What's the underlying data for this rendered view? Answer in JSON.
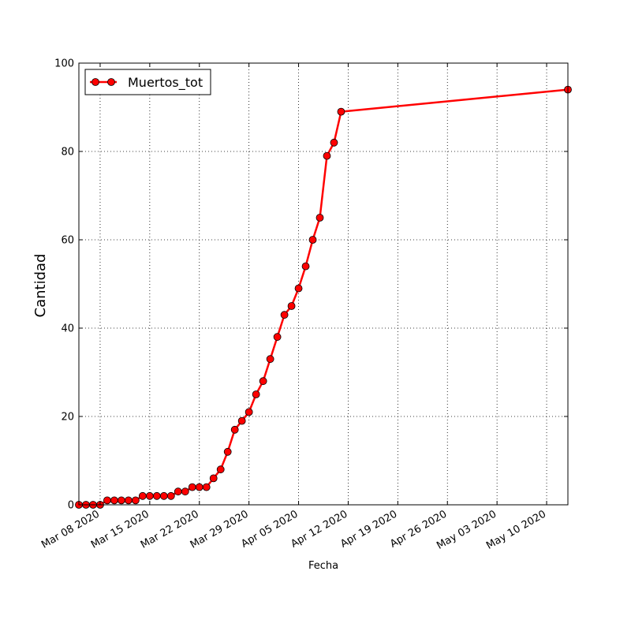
{
  "chart_data": {
    "type": "line",
    "title": "",
    "xlabel": "Fecha",
    "ylabel": "Cantidad",
    "x_start": "2020-03-05",
    "x_end": "2020-05-13",
    "ylim": [
      0,
      100
    ],
    "y_ticks": [
      0,
      20,
      40,
      60,
      80,
      100
    ],
    "x_ticks": [
      {
        "date": "2020-03-08",
        "label": "Mar 08 2020"
      },
      {
        "date": "2020-03-15",
        "label": "Mar 15 2020"
      },
      {
        "date": "2020-03-22",
        "label": "Mar 22 2020"
      },
      {
        "date": "2020-03-29",
        "label": "Mar 29 2020"
      },
      {
        "date": "2020-04-05",
        "label": "Apr 05 2020"
      },
      {
        "date": "2020-04-12",
        "label": "Apr 12 2020"
      },
      {
        "date": "2020-04-19",
        "label": "Apr 19 2020"
      },
      {
        "date": "2020-04-26",
        "label": "Apr 26 2020"
      },
      {
        "date": "2020-05-03",
        "label": "May 03 2020"
      },
      {
        "date": "2020-05-10",
        "label": "May 10 2020"
      }
    ],
    "grid": true,
    "legend_position": "top-left",
    "series": [
      {
        "name": "Muertos_tot",
        "color": "#ff0000",
        "points": [
          {
            "x": "2020-03-05",
            "y": 0
          },
          {
            "x": "2020-03-06",
            "y": 0
          },
          {
            "x": "2020-03-07",
            "y": 0
          },
          {
            "x": "2020-03-08",
            "y": 0
          },
          {
            "x": "2020-03-09",
            "y": 1
          },
          {
            "x": "2020-03-10",
            "y": 1
          },
          {
            "x": "2020-03-11",
            "y": 1
          },
          {
            "x": "2020-03-12",
            "y": 1
          },
          {
            "x": "2020-03-13",
            "y": 1
          },
          {
            "x": "2020-03-14",
            "y": 2
          },
          {
            "x": "2020-03-15",
            "y": 2
          },
          {
            "x": "2020-03-16",
            "y": 2
          },
          {
            "x": "2020-03-17",
            "y": 2
          },
          {
            "x": "2020-03-18",
            "y": 2
          },
          {
            "x": "2020-03-19",
            "y": 3
          },
          {
            "x": "2020-03-20",
            "y": 3
          },
          {
            "x": "2020-03-21",
            "y": 4
          },
          {
            "x": "2020-03-22",
            "y": 4
          },
          {
            "x": "2020-03-23",
            "y": 4
          },
          {
            "x": "2020-03-24",
            "y": 6
          },
          {
            "x": "2020-03-25",
            "y": 8
          },
          {
            "x": "2020-03-26",
            "y": 12
          },
          {
            "x": "2020-03-27",
            "y": 17
          },
          {
            "x": "2020-03-28",
            "y": 19
          },
          {
            "x": "2020-03-29",
            "y": 21
          },
          {
            "x": "2020-03-30",
            "y": 25
          },
          {
            "x": "2020-03-31",
            "y": 28
          },
          {
            "x": "2020-04-01",
            "y": 33
          },
          {
            "x": "2020-04-02",
            "y": 38
          },
          {
            "x": "2020-04-03",
            "y": 43
          },
          {
            "x": "2020-04-04",
            "y": 45
          },
          {
            "x": "2020-04-05",
            "y": 49
          },
          {
            "x": "2020-04-06",
            "y": 54
          },
          {
            "x": "2020-04-07",
            "y": 60
          },
          {
            "x": "2020-04-08",
            "y": 65
          },
          {
            "x": "2020-04-09",
            "y": 79
          },
          {
            "x": "2020-04-10",
            "y": 82
          },
          {
            "x": "2020-04-11",
            "y": 89
          },
          {
            "x": "2020-05-13",
            "y": 94
          }
        ]
      }
    ]
  }
}
